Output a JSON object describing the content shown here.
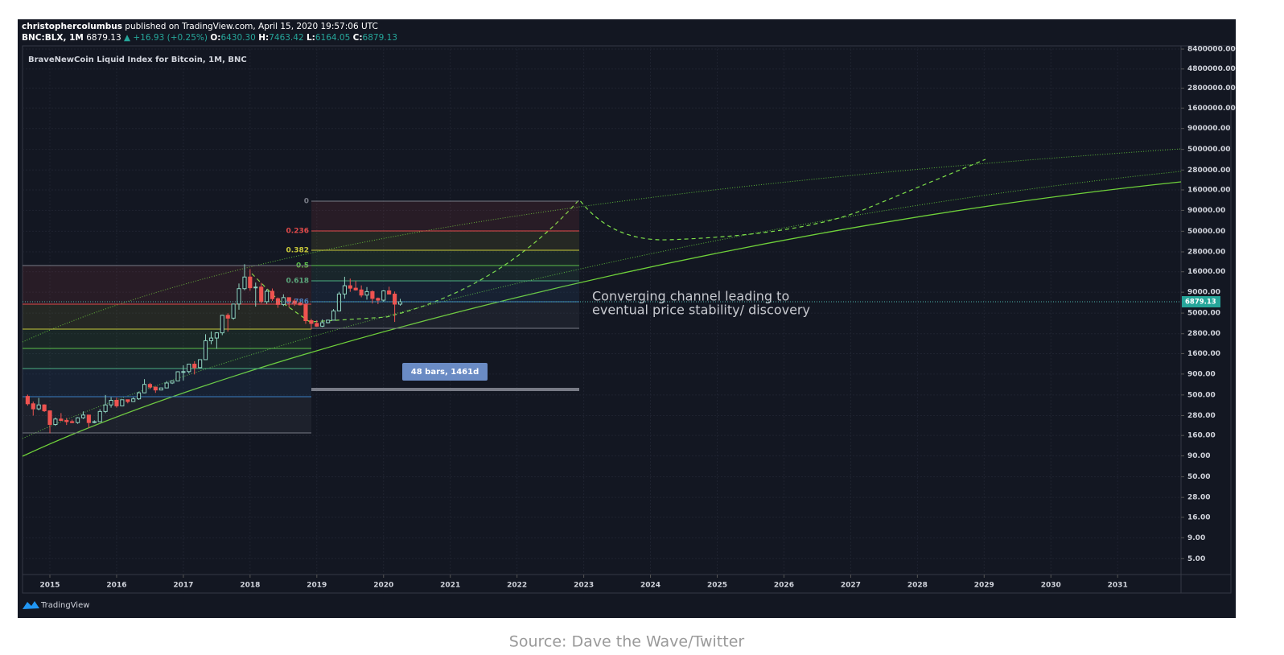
{
  "header": {
    "author": "christophercolumbus",
    "published": "published on TradingView.com, April 15, 2020 19:57:06 UTC",
    "symbol": "BNC:BLX, 1M",
    "last": "6879.13",
    "change": "▲ +16.93 (+0.25%)",
    "o_label": "O:",
    "o": "6430.30",
    "h_label": "H:",
    "h": "7463.42",
    "l_label": "L:",
    "l": "6164.05",
    "c_label": "C:",
    "c": "6879.13"
  },
  "chart_data": {
    "type": "candlestick",
    "title": "BraveNewCoin Liquid Index for Bitcoin, 1M, BNC",
    "log_y": true,
    "grid": true,
    "up_color": "#8fd3c0",
    "down_color": "#ef5350",
    "xlim": [
      2014.59,
      2031.95
    ],
    "xticks": [
      2015,
      2016,
      2017,
      2018,
      2019,
      2020,
      2021,
      2022,
      2023,
      2024,
      2025,
      2026,
      2027,
      2028,
      2029,
      2030,
      2031
    ],
    "ylim": [
      3.2,
      9200000
    ],
    "yticks": [
      {
        "value": 5,
        "label": "5.00"
      },
      {
        "value": 9,
        "label": "9.00"
      },
      {
        "value": 16,
        "label": "16.00"
      },
      {
        "value": 28,
        "label": "28.00"
      },
      {
        "value": 50,
        "label": "50.00"
      },
      {
        "value": 90,
        "label": "90.00"
      },
      {
        "value": 160,
        "label": "160.00"
      },
      {
        "value": 280,
        "label": "280.00"
      },
      {
        "value": 500,
        "label": "500.00"
      },
      {
        "value": 900,
        "label": "900.00"
      },
      {
        "value": 1600,
        "label": "1600.00"
      },
      {
        "value": 2800,
        "label": "2800.00"
      },
      {
        "value": 5000,
        "label": "5000.00"
      },
      {
        "value": 9000,
        "label": "9000.00"
      },
      {
        "value": 16000,
        "label": "16000.00"
      },
      {
        "value": 28000,
        "label": "28000.00"
      },
      {
        "value": 50000,
        "label": "50000.00"
      },
      {
        "value": 90000,
        "label": "90000.00"
      },
      {
        "value": 160000,
        "label": "160000.00"
      },
      {
        "value": 280000,
        "label": "280000.00"
      },
      {
        "value": 500000,
        "label": "500000.00"
      },
      {
        "value": 900000,
        "label": "900000.00"
      },
      {
        "value": 1600000,
        "label": "1600000.00"
      },
      {
        "value": 2800000,
        "label": "2800000.00"
      },
      {
        "value": 4800000,
        "label": "4800000.00"
      },
      {
        "value": 8400000,
        "label": "8400000.00"
      }
    ],
    "x": [
      2014.667,
      2014.75,
      2014.833,
      2014.917,
      2015.0,
      2015.083,
      2015.167,
      2015.25,
      2015.333,
      2015.417,
      2015.5,
      2015.583,
      2015.667,
      2015.75,
      2015.833,
      2015.917,
      2016.0,
      2016.083,
      2016.167,
      2016.25,
      2016.333,
      2016.417,
      2016.5,
      2016.583,
      2016.667,
      2016.75,
      2016.833,
      2016.917,
      2017.0,
      2017.083,
      2017.167,
      2017.25,
      2017.333,
      2017.417,
      2017.5,
      2017.583,
      2017.667,
      2017.75,
      2017.833,
      2017.917,
      2018.0,
      2018.083,
      2018.167,
      2018.25,
      2018.333,
      2018.417,
      2018.5,
      2018.583,
      2018.667,
      2018.75,
      2018.833,
      2018.917,
      2019.0,
      2019.083,
      2019.167,
      2019.25,
      2019.333,
      2019.417,
      2019.5,
      2019.583,
      2019.667,
      2019.75,
      2019.833,
      2019.917,
      2020.0,
      2020.083,
      2020.167,
      2020.25
    ],
    "open": [
      480,
      390,
      338,
      378,
      320,
      218,
      254,
      244,
      236,
      230,
      263,
      284,
      230,
      236,
      314,
      378,
      430,
      368,
      437,
      416,
      448,
      531,
      673,
      624,
      575,
      609,
      700,
      742,
      960,
      965,
      1190,
      1080,
      1350,
      2300,
      2480,
      2870,
      4700,
      4340,
      6450,
      9950,
      13800,
      10200,
      10400,
      6900,
      9240,
      7500,
      6380,
      7730,
      7020,
      6630,
      6310,
      4040,
      3740,
      3460,
      3820,
      4100,
      5320,
      8560,
      10800,
      10080,
      9600,
      8300,
      9150,
      7560,
      7190,
      9340,
      8540,
      6430.3
    ],
    "high": [
      505,
      415,
      460,
      385,
      320,
      265,
      300,
      262,
      250,
      268,
      315,
      285,
      245,
      335,
      500,
      470,
      465,
      440,
      440,
      468,
      548,
      780,
      703,
      625,
      612,
      740,
      753,
      975,
      1150,
      1200,
      1290,
      1350,
      2760,
      2980,
      2920,
      4760,
      4980,
      6470,
      11500,
      19800,
      17200,
      11800,
      11700,
      9800,
      9990,
      7760,
      8480,
      7760,
      7400,
      6800,
      6540,
      4250,
      4100,
      4200,
      4150,
      5600,
      9100,
      13900,
      13200,
      12300,
      10900,
      10400,
      9500,
      7750,
      9560,
      10500,
      9180,
      7463.42
    ],
    "low": [
      370,
      280,
      325,
      310,
      170,
      210,
      240,
      215,
      226,
      222,
      255,
      198,
      225,
      235,
      300,
      350,
      350,
      365,
      395,
      412,
      436,
      525,
      590,
      530,
      570,
      605,
      680,
      742,
      750,
      915,
      890,
      1060,
      1350,
      2080,
      1830,
      2690,
      2970,
      4150,
      5500,
      9500,
      9400,
      6000,
      6600,
      6500,
      7050,
      5800,
      6100,
      5880,
      6120,
      6200,
      3700,
      3160,
      3400,
      3380,
      3740,
      4080,
      5320,
      7500,
      9100,
      9400,
      7800,
      7300,
      6550,
      6430,
      6870,
      8450,
      3900,
      6164.05
    ],
    "close": [
      390,
      338,
      378,
      320,
      218,
      254,
      244,
      236,
      230,
      263,
      284,
      230,
      236,
      314,
      378,
      430,
      368,
      437,
      416,
      448,
      531,
      673,
      624,
      575,
      609,
      700,
      742,
      960,
      965,
      1190,
      1080,
      1350,
      2300,
      2480,
      2870,
      4700,
      4340,
      6450,
      9950,
      13800,
      10200,
      10400,
      6900,
      9240,
      7500,
      6380,
      7730,
      7020,
      6630,
      6310,
      4040,
      3740,
      3460,
      3820,
      4100,
      5320,
      8560,
      10800,
      10080,
      9600,
      8300,
      9150,
      7560,
      7190,
      9340,
      8540,
      6430.3,
      6879.13
    ],
    "fib_levels": [
      "0",
      "0.236",
      "0.382",
      "0.5",
      "0.618",
      "0.786"
    ],
    "note": [
      "Converging channel leading to",
      "eventual price stability/ discovery"
    ],
    "measure": "48 bars, 1461d"
  },
  "footer": {
    "logo": "TradingView",
    "source": "Source: Dave the Wave/Twitter"
  }
}
